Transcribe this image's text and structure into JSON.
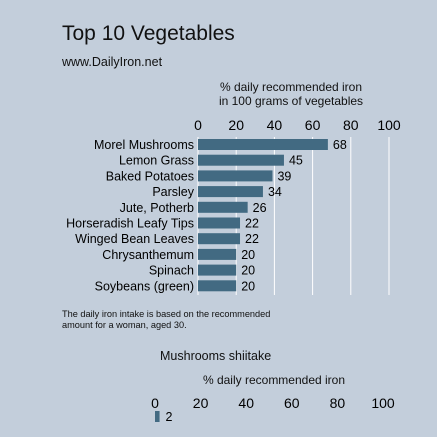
{
  "header": {
    "title": "Top 10 Vegetables",
    "subtitle": "www.DailyIron.net"
  },
  "footnote": {
    "line1": "The daily iron intake is based on the recommended",
    "line2": "amount for a woman, aged 30."
  },
  "colors": {
    "background": "#c3cedb",
    "bar": "#426a82",
    "gridline": "#ffffff"
  },
  "chart_data": [
    {
      "type": "bar",
      "orientation": "horizontal",
      "title": "Top 10 Vegetables",
      "subtitle": "www.DailyIron.net",
      "xlabel_line1": "% daily recommended iron",
      "xlabel_line2": "in 100 grams of vegetables",
      "xlim": [
        0,
        100
      ],
      "xticks": [
        0,
        20,
        40,
        60,
        80,
        100
      ],
      "grid": true,
      "categories": [
        "Morel Mushrooms",
        "Lemon Grass",
        "Baked Potatoes",
        "Parsley",
        "Jute, Potherb",
        "Horseradish Leafy Tips",
        "Winged Bean Leaves",
        "Chrysanthemum",
        "Spinach",
        "Soybeans (green)"
      ],
      "values": [
        68,
        45,
        39,
        34,
        26,
        22,
        22,
        20,
        20,
        20
      ]
    },
    {
      "type": "bar",
      "orientation": "horizontal",
      "title": "Mushrooms shiitake",
      "xlabel": "% daily recommended iron",
      "xlim": [
        0,
        100
      ],
      "xticks": [
        0,
        20,
        40,
        60,
        80,
        100
      ],
      "values": [
        2
      ]
    }
  ]
}
